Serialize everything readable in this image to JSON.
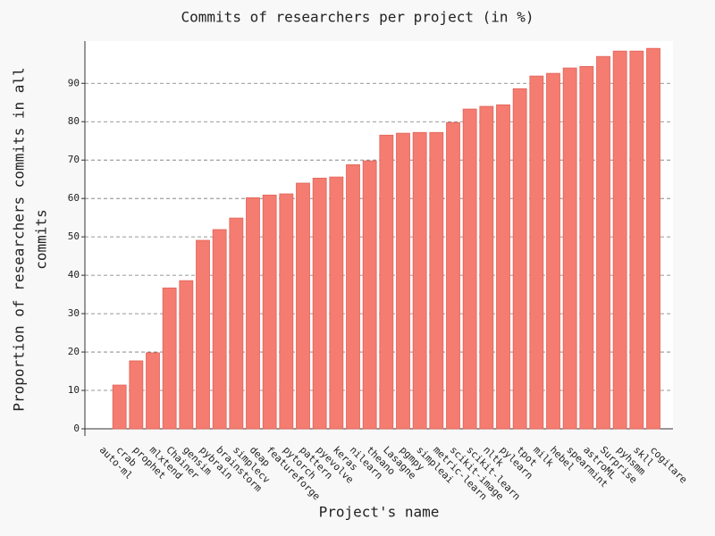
{
  "chart_data": {
    "type": "bar",
    "title": "Commits of researchers per project (in %)",
    "xlabel": "Project's name",
    "ylabel": [
      "Proportion of researchers commits in all",
      "commits"
    ],
    "categories": [
      "auto-ml",
      "crab",
      "prophet",
      "mlxtend",
      "Chainer",
      "gensim",
      "pybrain",
      "brainstorm",
      "simplecv",
      "deap",
      "featureforge",
      "pytorch",
      "pattern",
      "pyevolve",
      "keras",
      "nilearn",
      "theano",
      "Lasagne",
      "pgmpy",
      "simpleai",
      "metric-learn",
      "scikit-image",
      "scikit-learn",
      "nltk",
      "pylearn",
      "tpot",
      "milk",
      "hebel",
      "spearmint",
      "astroML",
      "Surprise",
      "pyhsmm",
      "skll",
      "cogitare"
    ],
    "values": [
      0,
      11.4,
      17.7,
      19.8,
      36.7,
      38.6,
      49.1,
      51.9,
      54.9,
      60.2,
      60.9,
      61.2,
      64.0,
      65.3,
      65.6,
      68.8,
      69.8,
      76.5,
      77.0,
      77.2,
      77.2,
      79.8,
      83.3,
      84.0,
      84.4,
      88.6,
      91.9,
      92.6,
      94.0,
      94.4,
      97.0,
      98.4,
      98.4,
      99.1
    ],
    "color": "#f47c70",
    "ylim": [
      0,
      101
    ],
    "yticks": [
      0,
      10,
      20,
      30,
      40,
      50,
      60,
      70,
      80,
      90
    ],
    "grid": true
  }
}
